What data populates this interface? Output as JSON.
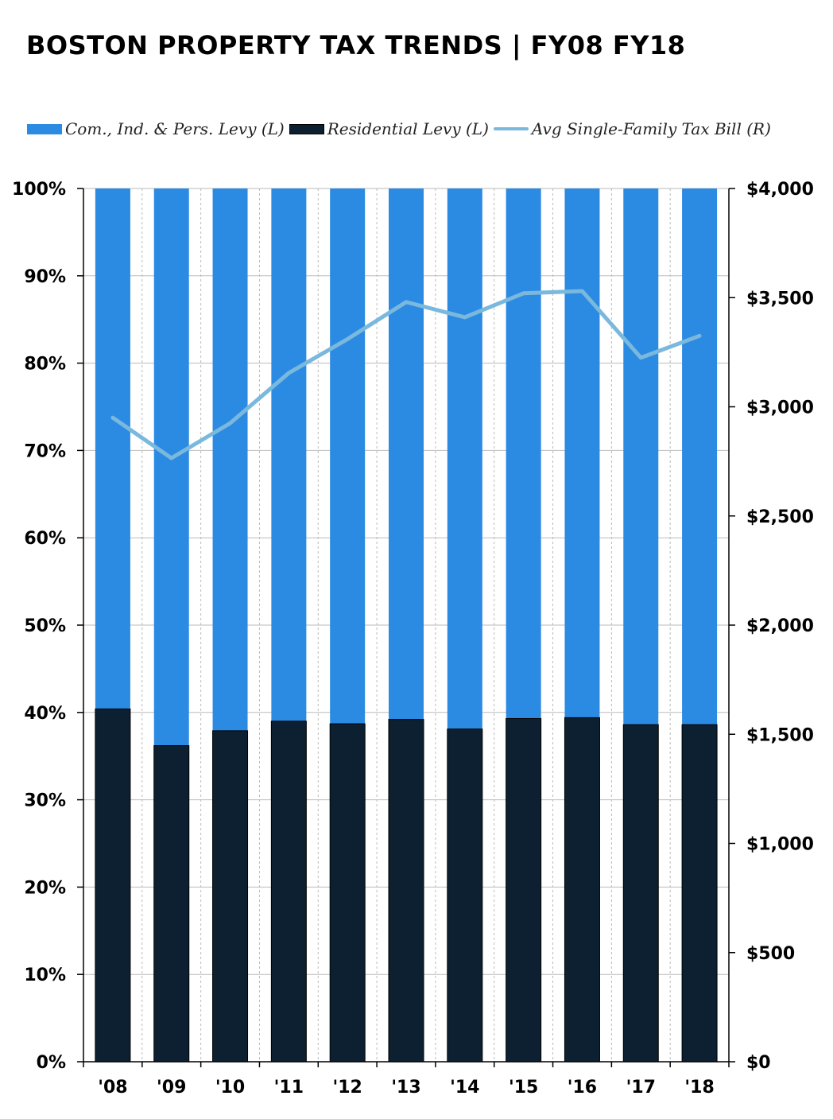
{
  "title": "BOSTON PROPERTY TAX TRENDS | FY08 FY18",
  "legend": {
    "commercial": "Com., Ind. & Pers. Levy (L)",
    "residential": "Residential Levy (L)",
    "avg_bill": "Avg Single-Family Tax Bill (R)"
  },
  "colors": {
    "commercial": "#2b8ae2",
    "residential": "#0c2032",
    "avg_bill": "#7ab8dd",
    "grid": "#bbbbbb"
  },
  "chart_data": {
    "type": "bar",
    "stacked": true,
    "title": "BOSTON PROPERTY TAX TRENDS | FY08 FY18",
    "categories": [
      "'08",
      "'09",
      "'10",
      "'11",
      "'12",
      "'13",
      "'14",
      "'15",
      "'16",
      "'17",
      "'18"
    ],
    "series": [
      {
        "name": "Residential Levy (L)",
        "axis": "left",
        "type": "bar",
        "values": [
          40.4,
          36.2,
          37.9,
          39.0,
          38.7,
          39.2,
          38.1,
          39.3,
          39.4,
          38.6,
          38.6
        ]
      },
      {
        "name": "Com., Ind. & Pers. Levy (L)",
        "axis": "left",
        "type": "bar",
        "values": [
          59.6,
          63.8,
          62.1,
          61.0,
          61.3,
          60.8,
          61.9,
          60.7,
          60.6,
          61.4,
          61.4
        ]
      },
      {
        "name": "Avg Single-Family Tax Bill (R)",
        "axis": "right",
        "type": "line",
        "values": [
          2950,
          2765,
          2925,
          3155,
          3310,
          3480,
          3410,
          3520,
          3530,
          3225,
          3325
        ]
      }
    ],
    "left_axis": {
      "ylim": [
        0,
        100
      ],
      "ticks": [
        0,
        10,
        20,
        30,
        40,
        50,
        60,
        70,
        80,
        90,
        100
      ],
      "tick_labels": [
        "0%",
        "10%",
        "20%",
        "30%",
        "40%",
        "50%",
        "60%",
        "70%",
        "80%",
        "90%",
        "100%"
      ]
    },
    "right_axis": {
      "ylim": [
        0,
        4000
      ],
      "ticks": [
        0,
        500,
        1000,
        1500,
        2000,
        2500,
        3000,
        3500,
        4000
      ],
      "tick_labels": [
        "$0",
        "$500",
        "$1,000",
        "$1,500",
        "$2,000",
        "$2,500",
        "$3,000",
        "$3,500",
        "$4,000"
      ]
    },
    "grid": true,
    "legend_position": "top-left"
  }
}
